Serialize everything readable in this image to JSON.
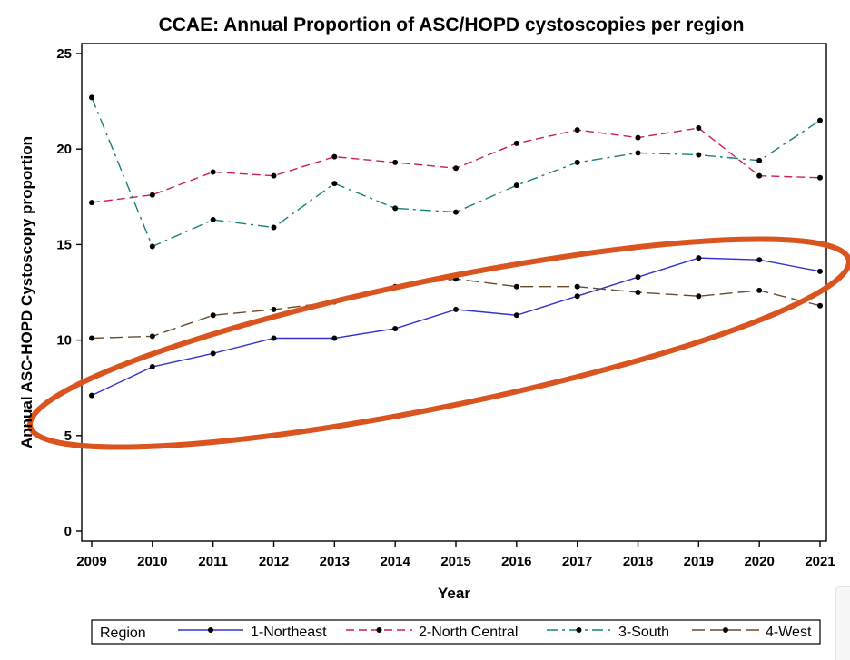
{
  "chart_data": {
    "type": "line",
    "title": "CCAE: Annual Proportion of ASC/HOPD cystoscopies per region",
    "xlabel": "Year",
    "ylabel": "Annual ASC-HOPD Cystoscopy proportion",
    "x": [
      2009,
      2010,
      2011,
      2012,
      2013,
      2014,
      2015,
      2016,
      2017,
      2018,
      2019,
      2020,
      2021
    ],
    "x_tick_labels": [
      "2009",
      "2010",
      "2011",
      "2012",
      "2013",
      "2014",
      "2015",
      "2016",
      "2017",
      "2018",
      "2019",
      "2020",
      "2021"
    ],
    "ylim": [
      0,
      25
    ],
    "y_ticks": [
      0,
      5,
      10,
      15,
      20,
      25
    ],
    "y_tick_labels": [
      "0",
      "5",
      "10",
      "15",
      "20",
      "25"
    ],
    "grid": false,
    "legend": {
      "title": "Region",
      "placement": "bottom"
    },
    "series": [
      {
        "name": "1-Northeast",
        "color": "#3333cc",
        "dash": "solid",
        "values": [
          7.1,
          8.6,
          9.3,
          10.1,
          10.1,
          10.6,
          11.6,
          11.3,
          12.3,
          13.3,
          14.3,
          14.2,
          13.6
        ]
      },
      {
        "name": "2-North Central",
        "color": "#cc1f4f",
        "dash": "dashed",
        "values": [
          17.2,
          17.6,
          18.8,
          18.6,
          19.6,
          19.3,
          19.0,
          20.3,
          21.0,
          20.6,
          21.1,
          18.6,
          18.5
        ]
      },
      {
        "name": "3-South",
        "color": "#17807e",
        "dash": "dash-dot",
        "values": [
          22.7,
          14.9,
          16.3,
          15.9,
          18.2,
          16.9,
          16.7,
          18.1,
          19.3,
          19.8,
          19.7,
          19.4,
          21.5
        ]
      },
      {
        "name": "4-West",
        "color": "#6b4a2b",
        "dash": "long-dash",
        "values": [
          10.1,
          10.2,
          11.3,
          11.6,
          12.0,
          12.8,
          13.2,
          12.8,
          12.8,
          12.5,
          12.3,
          12.6,
          11.8
        ]
      }
    ],
    "annotation": {
      "shape": "ellipse",
      "color": "#d9541e",
      "encloses": [
        "1-Northeast",
        "4-West"
      ]
    }
  }
}
